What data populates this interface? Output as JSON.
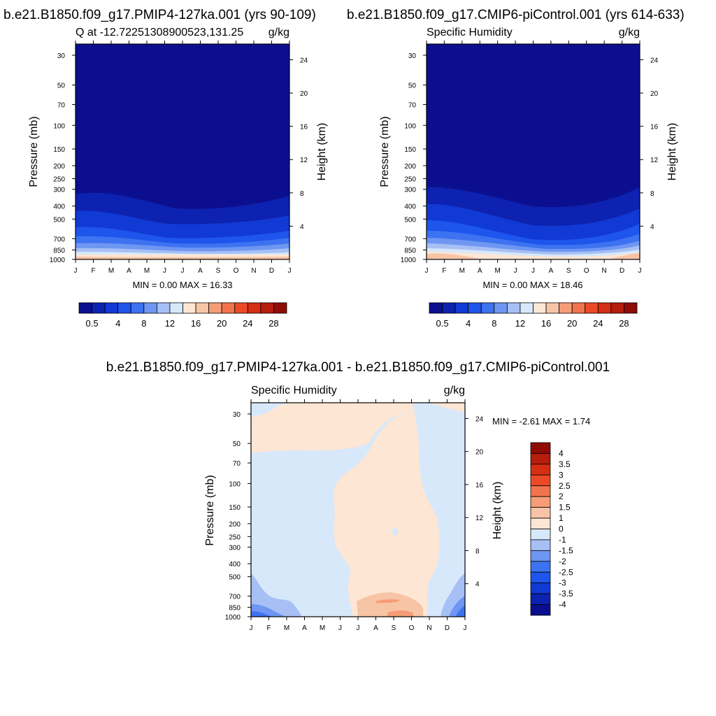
{
  "panels": {
    "left": {
      "case_title": "b.e21.B1850.f09_g17.PMIP4-127ka.001 (yrs 90-109)",
      "plot_title": "Q at -12.72251308900523,131.25",
      "units": "g/kg",
      "stats": "MIN =   0.00 MAX =  16.33"
    },
    "right": {
      "case_title": "b.e21.B1850.f09_g17.CMIP6-piControl.001 (yrs 614-633)",
      "plot_title": "Specific Humidity",
      "units": "g/kg",
      "stats": "MIN =   0.00 MAX =  18.46"
    },
    "diff": {
      "case_title": "b.e21.B1850.f09_g17.PMIP4-127ka.001 - b.e21.B1850.f09_g17.CMIP6-piControl.001",
      "plot_title": "Specific Humidity",
      "units": "g/kg",
      "stats": "MIN =  -2.61 MAX =   1.74"
    }
  },
  "chart_data": [
    {
      "type": "heatmap",
      "title": "Q at -12.72251308900523,131.25",
      "units": "g/kg",
      "xlabel": "",
      "ylabel": "Pressure (mb)",
      "y2label": "Height (km)",
      "x_ticks": [
        "J",
        "F",
        "M",
        "A",
        "M",
        "J",
        "J",
        "A",
        "S",
        "O",
        "N",
        "D",
        "J"
      ],
      "y_ticks": [
        30,
        50,
        70,
        100,
        150,
        200,
        250,
        300,
        400,
        500,
        700,
        850,
        1000
      ],
      "y2_ticks": [
        24,
        20,
        16,
        12,
        8,
        4
      ],
      "y_scale": "log",
      "y_range": [
        25,
        1000
      ],
      "min": 0.0,
      "max": 16.33,
      "colorbar": {
        "orientation": "horizontal",
        "labels": [
          "0.5",
          "4",
          "8",
          "12",
          "16",
          "20",
          "24",
          "28"
        ],
        "colors": [
          "#0b0f8f",
          "#0d22b0",
          "#1139d4",
          "#1e55ec",
          "#3d73f0",
          "#6e96f2",
          "#a6c0f5",
          "#d8e8fb",
          "#fde6d4",
          "#f8c4a6",
          "#f59d77",
          "#f2744d",
          "#ec4a26",
          "#d52e14",
          "#b51d0d",
          "#8f0c06"
        ]
      }
    },
    {
      "type": "heatmap",
      "title": "Specific Humidity",
      "units": "g/kg",
      "xlabel": "",
      "ylabel": "Pressure (mb)",
      "y2label": "Height (km)",
      "x_ticks": [
        "J",
        "F",
        "M",
        "A",
        "M",
        "J",
        "J",
        "A",
        "S",
        "O",
        "N",
        "D",
        "J"
      ],
      "y_ticks": [
        30,
        50,
        70,
        100,
        150,
        200,
        250,
        300,
        400,
        500,
        700,
        850,
        1000
      ],
      "y2_ticks": [
        24,
        20,
        16,
        12,
        8,
        4
      ],
      "y_scale": "log",
      "y_range": [
        25,
        1000
      ],
      "min": 0.0,
      "max": 18.46,
      "colorbar": {
        "orientation": "horizontal",
        "labels": [
          "0.5",
          "4",
          "8",
          "12",
          "16",
          "20",
          "24",
          "28"
        ],
        "colors": [
          "#0b0f8f",
          "#0d22b0",
          "#1139d4",
          "#1e55ec",
          "#3d73f0",
          "#6e96f2",
          "#a6c0f5",
          "#d8e8fb",
          "#fde6d4",
          "#f8c4a6",
          "#f59d77",
          "#f2744d",
          "#ec4a26",
          "#d52e14",
          "#b51d0d",
          "#8f0c06"
        ]
      }
    },
    {
      "type": "heatmap",
      "title": "Specific Humidity",
      "units": "g/kg",
      "xlabel": "",
      "ylabel": "Pressure (mb)",
      "y2label": "Height (km)",
      "x_ticks": [
        "J",
        "F",
        "M",
        "A",
        "M",
        "J",
        "J",
        "A",
        "S",
        "O",
        "N",
        "D",
        "J"
      ],
      "y_ticks": [
        30,
        50,
        70,
        100,
        150,
        200,
        250,
        300,
        400,
        500,
        700,
        850,
        1000
      ],
      "y2_ticks": [
        24,
        20,
        16,
        12,
        8,
        4
      ],
      "y_scale": "log",
      "y_range": [
        25,
        1000
      ],
      "min": -2.61,
      "max": 1.74,
      "colorbar": {
        "orientation": "vertical",
        "labels": [
          "4",
          "3.5",
          "3",
          "2.5",
          "2",
          "1.5",
          "1",
          "0",
          "-1",
          "-1.5",
          "-2",
          "-2.5",
          "-3",
          "-3.5",
          "-4"
        ],
        "colors": [
          "#8f0c06",
          "#b51d0d",
          "#d52e14",
          "#ec4a26",
          "#f2744d",
          "#f59d77",
          "#f8c4a6",
          "#fde6d4",
          "#d8e8fb",
          "#a6c0f5",
          "#6e96f2",
          "#3d73f0",
          "#1e55ec",
          "#1139d4",
          "#0d22b0",
          "#0b0f8f"
        ]
      }
    }
  ]
}
